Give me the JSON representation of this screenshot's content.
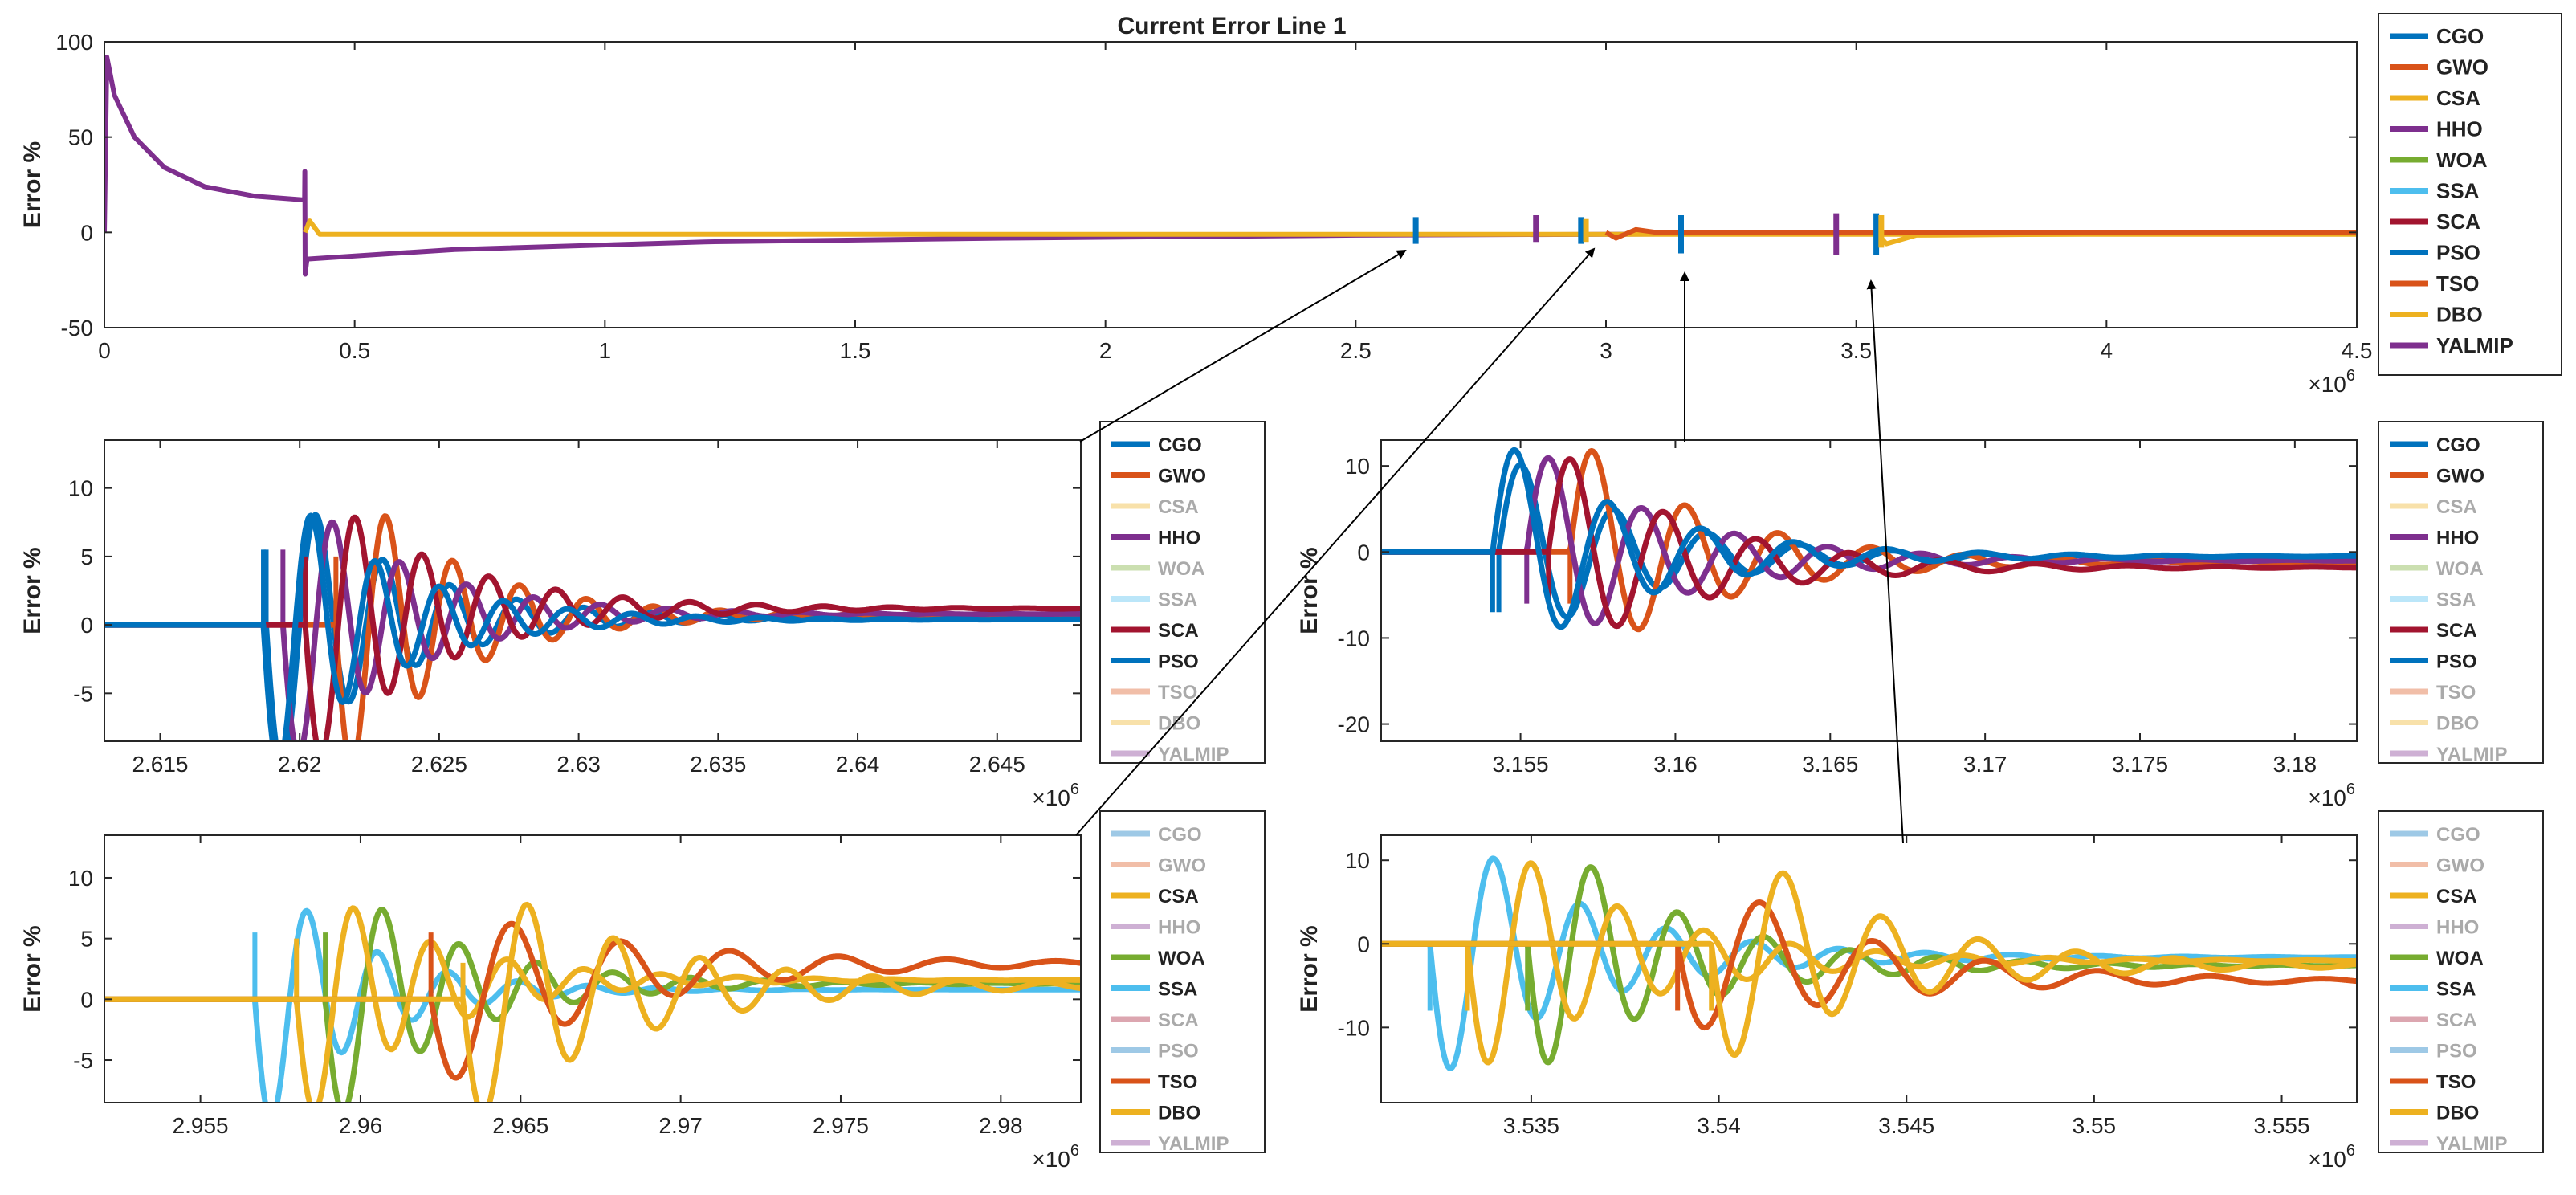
{
  "chart_data": [
    {
      "id": "main",
      "type": "line",
      "title": "Current Error Line 1",
      "ylabel": "Error %",
      "xlabel": "",
      "xlim": [
        0,
        4500000
      ],
      "ylim": [
        -50,
        100
      ],
      "xticks": [
        0,
        500000,
        1000000,
        1500000,
        2000000,
        2500000,
        3000000,
        3500000,
        4000000,
        4500000
      ],
      "xtick_labels": [
        "0",
        "0.5",
        "1",
        "1.5",
        "2",
        "2.5",
        "3",
        "3.5",
        "4",
        "4.5"
      ],
      "yticks": [
        -50,
        0,
        50,
        100
      ],
      "ytick_labels": [
        "-50",
        "0",
        "50",
        "100"
      ],
      "exponent": "×10^6",
      "legend": [
        "CGO",
        "GWO",
        "CSA",
        "HHO",
        "WOA",
        "SSA",
        "SCA",
        "PSO",
        "TSO",
        "DBO",
        "YALMIP"
      ],
      "legend_active": [
        "CGO",
        "GWO",
        "CSA",
        "HHO",
        "WOA",
        "SSA",
        "SCA",
        "PSO",
        "TSO",
        "DBO",
        "YALMIP"
      ],
      "series": [
        {
          "name": "YALMIP",
          "points": [
            [
              0,
              0
            ],
            [
              5000,
              92
            ],
            [
              20000,
              72
            ],
            [
              60000,
              50
            ],
            [
              120000,
              34
            ],
            [
              200000,
              24
            ],
            [
              300000,
              19
            ],
            [
              400000,
              17
            ],
            [
              400500,
              32
            ],
            [
              401000,
              -22
            ],
            [
              405000,
              -14
            ],
            [
              700000,
              -9
            ],
            [
              1200000,
              -5
            ],
            [
              1800000,
              -3
            ],
            [
              2500000,
              -1.5
            ],
            [
              3500000,
              -0.5
            ],
            [
              4380000,
              0
            ]
          ]
        },
        {
          "name": "CSA",
          "points": [
            [
              401000,
              0
            ],
            [
              410000,
              6
            ],
            [
              430000,
              -1
            ],
            [
              600000,
              -1
            ],
            [
              4500000,
              -1
            ]
          ]
        },
        {
          "name": "DBO",
          "points": [
            [
              3540000,
              0
            ],
            [
              3560000,
              -6
            ],
            [
              3620000,
              -1.5
            ],
            [
              4500000,
              0
            ]
          ]
        },
        {
          "name": "TSO",
          "points": [
            [
              3000000,
              0
            ],
            [
              3020000,
              -3
            ],
            [
              3060000,
              1.5
            ],
            [
              3100000,
              0
            ],
            [
              4500000,
              0
            ]
          ]
        },
        {
          "name": "CGO",
          "spikes": [
            [
              2620000,
              -6,
              8
            ],
            [
              2950000,
              -6,
              8
            ],
            [
              3150000,
              -11,
              9
            ],
            [
              3540000,
              -12,
              10
            ]
          ]
        },
        {
          "name": "HHO",
          "spikes": [
            [
              2860000,
              -5,
              9
            ],
            [
              3460000,
              -12,
              10
            ]
          ]
        },
        {
          "name": "CSA",
          "spikes": [
            [
              2960000,
              -5,
              7
            ],
            [
              3550000,
              -8,
              9
            ]
          ]
        }
      ]
    },
    {
      "id": "zoom1",
      "type": "line",
      "ylabel": "Error %",
      "xlim": [
        2613000,
        2648000
      ],
      "ylim": [
        -8.5,
        13.5
      ],
      "xticks": [
        2615000,
        2620000,
        2625000,
        2630000,
        2635000,
        2640000,
        2645000
      ],
      "xtick_labels": [
        "2.615",
        "2.62",
        "2.625",
        "2.63",
        "2.635",
        "2.64",
        "2.645"
      ],
      "yticks": [
        -5,
        0,
        5,
        10
      ],
      "ytick_labels": [
        "-5",
        "0",
        "5",
        "10"
      ],
      "exponent": "×10^6",
      "legend": [
        "CGO",
        "GWO",
        "CSA",
        "HHO",
        "WOA",
        "SSA",
        "SCA",
        "PSO",
        "TSO",
        "DBO",
        "YALMIP"
      ],
      "legend_active": [
        "CGO",
        "GWO",
        "HHO",
        "SCA",
        "PSO"
      ],
      "series": [
        {
          "name": "CGO",
          "t0": 2618800,
          "amp": 12,
          "period": 2400,
          "decay": 4200,
          "settle": 0.5,
          "spike": 5.5
        },
        {
          "name": "GWO",
          "t0": 2621300,
          "amp": 12,
          "period": 2400,
          "decay": 4000,
          "settle": 0.7,
          "spike": 5
        },
        {
          "name": "HHO",
          "t0": 2619400,
          "amp": 11,
          "period": 2400,
          "decay": 4200,
          "settle": 0.8,
          "spike": 5.5
        },
        {
          "name": "SCA",
          "t0": 2620200,
          "amp": 11,
          "period": 2400,
          "decay": 4500,
          "settle": 1.2,
          "spike": 5
        },
        {
          "name": "PSO",
          "t0": 2618700,
          "amp": 12,
          "period": 2300,
          "decay": 4000,
          "settle": 0.4,
          "spike": 5.5
        }
      ]
    },
    {
      "id": "zoom2",
      "type": "line",
      "ylabel": "Error %",
      "xlim": [
        3150500,
        3182000
      ],
      "ylim": [
        -22,
        13
      ],
      "xticks": [
        3155000,
        3160000,
        3165000,
        3170000,
        3175000,
        3180000
      ],
      "xtick_labels": [
        "3.155",
        "3.16",
        "3.165",
        "3.17",
        "3.175",
        "3.18"
      ],
      "yticks": [
        -20,
        -10,
        0,
        10
      ],
      "ytick_labels": [
        "-20",
        "-10",
        "0",
        "10"
      ],
      "exponent": "×10^6",
      "legend": [
        "CGO",
        "GWO",
        "CSA",
        "HHO",
        "WOA",
        "SSA",
        "SCA",
        "PSO",
        "TSO",
        "DBO",
        "YALMIP"
      ],
      "legend_active": [
        "CGO",
        "GWO",
        "HHO",
        "SCA",
        "PSO"
      ],
      "series": [
        {
          "name": "CGO",
          "t0": 3154300,
          "amp": 12,
          "period": 3000,
          "decay": 4500,
          "settle": -0.6,
          "spike": -7,
          "invert": true
        },
        {
          "name": "GWO",
          "t0": 3156600,
          "amp": 14,
          "period": 3000,
          "decay": 4500,
          "settle": -1.2,
          "spike": -6,
          "invert": true
        },
        {
          "name": "HHO",
          "t0": 3155200,
          "amp": 13,
          "period": 3000,
          "decay": 4500,
          "settle": -1.0,
          "spike": -6,
          "invert": true
        },
        {
          "name": "SCA",
          "t0": 3155900,
          "amp": 13,
          "period": 3000,
          "decay": 4500,
          "settle": -1.8,
          "spike": -6,
          "invert": true
        },
        {
          "name": "PSO",
          "t0": 3154100,
          "amp": 14,
          "period": 3000,
          "decay": 4500,
          "settle": -0.5,
          "spike": -7,
          "invert": true
        }
      ]
    },
    {
      "id": "zoom3",
      "type": "line",
      "ylabel": "Error %",
      "xlim": [
        2952000,
        2982500
      ],
      "ylim": [
        -8.5,
        13.5
      ],
      "xticks": [
        2955000,
        2960000,
        2965000,
        2970000,
        2975000,
        2980000
      ],
      "xtick_labels": [
        "2.955",
        "2.96",
        "2.965",
        "2.97",
        "2.975",
        "2.98"
      ],
      "yticks": [
        -5,
        0,
        5,
        10
      ],
      "ytick_labels": [
        "-5",
        "0",
        "5",
        "10"
      ],
      "exponent": "×10^6",
      "legend": [
        "CGO",
        "GWO",
        "CSA",
        "HHO",
        "WOA",
        "SSA",
        "SCA",
        "PSO",
        "TSO",
        "DBO",
        "YALMIP"
      ],
      "legend_active": [
        "CSA",
        "WOA",
        "SSA",
        "TSO",
        "DBO"
      ],
      "series": [
        {
          "name": "SSA",
          "t0": 2956700,
          "amp": 12,
          "period": 2200,
          "decay": 3000,
          "settle": 0.8,
          "spike": 5.5
        },
        {
          "name": "WOA",
          "t0": 2958900,
          "amp": 11,
          "period": 2400,
          "decay": 3800,
          "settle": 1.3,
          "spike": 5.5
        },
        {
          "name": "CSA",
          "t0": 2958000,
          "amp": 11,
          "period": 2400,
          "decay": 3800,
          "settle": 1.6,
          "spike": 5
        },
        {
          "name": "TSO",
          "t0": 2962200,
          "amp": 8,
          "period": 3400,
          "decay": 5500,
          "settle": 3.0,
          "spike": 5.5
        },
        {
          "name": "DBO",
          "t0": 2963200,
          "amp": 11,
          "period": 2700,
          "decay": 5000,
          "settle": 1.1,
          "spike": 3
        }
      ]
    },
    {
      "id": "zoom4",
      "type": "line",
      "ylabel": "Error %",
      "xlim": [
        3531000,
        3557000
      ],
      "ylim": [
        -19,
        13
      ],
      "xticks": [
        3535000,
        3540000,
        3545000,
        3550000,
        3555000
      ],
      "xtick_labels": [
        "3.535",
        "3.54",
        "3.545",
        "3.55",
        "3.555"
      ],
      "yticks": [
        -10,
        0,
        10
      ],
      "ytick_labels": [
        "-10",
        "0",
        "10"
      ],
      "exponent": "×10^6",
      "legend": [
        "CGO",
        "GWO",
        "CSA",
        "HHO",
        "WOA",
        "SSA",
        "SCA",
        "PSO",
        "TSO",
        "DBO",
        "YALMIP"
      ],
      "legend_active": [
        "CSA",
        "WOA",
        "SSA",
        "TSO",
        "DBO"
      ],
      "series": [
        {
          "name": "SSA",
          "t0": 3532300,
          "amp": 17,
          "period": 2300,
          "decay": 3800,
          "settle": -1.6,
          "spike": -8
        },
        {
          "name": "WOA",
          "t0": 3534900,
          "amp": 16,
          "period": 2300,
          "decay": 3800,
          "settle": -2.6,
          "spike": -8
        },
        {
          "name": "CSA",
          "t0": 3533300,
          "amp": 16,
          "period": 2300,
          "decay": 4000,
          "settle": -2.0,
          "spike": -8
        },
        {
          "name": "TSO",
          "t0": 3538900,
          "amp": 11,
          "period": 3000,
          "decay": 4500,
          "settle": -4.5,
          "spike": -8
        },
        {
          "name": "DBO",
          "t0": 3539800,
          "amp": 15,
          "period": 2600,
          "decay": 4200,
          "settle": -2.6,
          "spike": -8
        }
      ]
    }
  ],
  "colors": {
    "CGO": "#0072BD",
    "GWO": "#D95319",
    "CSA": "#EDB120",
    "HHO": "#7E2F8E",
    "WOA": "#77AC30",
    "SSA": "#4DBEEE",
    "SCA": "#A2142F",
    "PSO": "#0072BD",
    "TSO": "#D95319",
    "DBO": "#EDB120",
    "YALMIP": "#7E2F8E"
  }
}
